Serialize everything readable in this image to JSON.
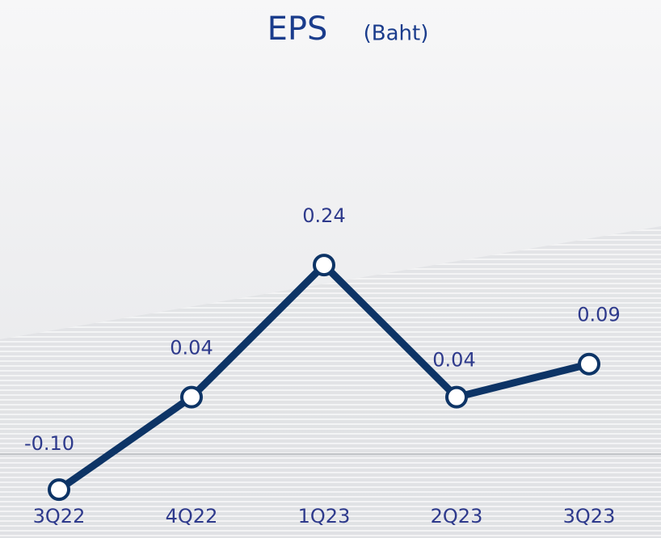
{
  "chart_data": {
    "type": "line",
    "title": "EPS",
    "subtitle": "(Baht)",
    "categories": [
      "3Q22",
      "4Q22",
      "1Q23",
      "2Q23",
      "3Q23"
    ],
    "series": [
      {
        "name": "EPS",
        "color": "#0d3466",
        "values": [
          -0.1,
          0.04,
          0.24,
          0.04,
          0.09
        ],
        "value_labels": [
          "-0.10",
          "0.04",
          "0.24",
          "0.04",
          "0.09"
        ]
      }
    ],
    "ylim": [
      -0.15,
      0.3
    ]
  }
}
